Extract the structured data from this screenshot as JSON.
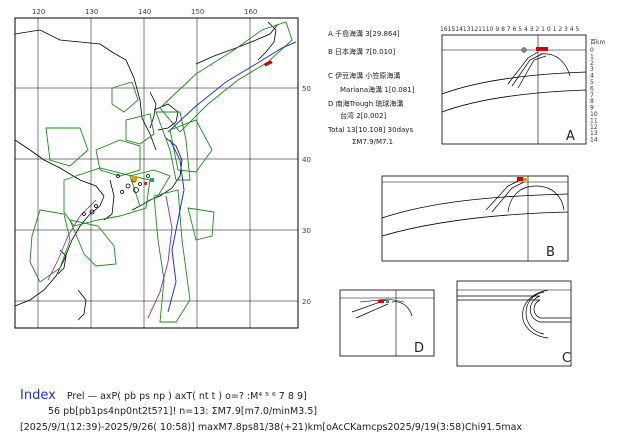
{
  "map": {
    "lon_ticks": [
      "120",
      "130",
      "140",
      "150",
      "160"
    ],
    "lat_ticks": [
      "50",
      "40",
      "30",
      "20"
    ]
  },
  "legend": {
    "a": "A 千島海溝 3[29.864]",
    "b": "B 日本海溝 7[0.010]",
    "c": "C 伊豆海溝 小笠原海溝",
    "c2": "Mariana海溝 1[0.081]",
    "d": "D 南海Trough 琉球海溝",
    "d2": "台湾 2[0.002]",
    "total": "Total 13[10.108] 30days",
    "sum": "ΣM7.9/M7.1"
  },
  "panels": {
    "a_label": "A",
    "b_label": "B",
    "c_label": "C",
    "d_label": "D",
    "a_top_ticks": "16151413121110 9 8 7 6 5 4 3 2 1 0 1 2 3 4 5",
    "a_unit": "百km",
    "depth_ticks": [
      "0",
      "1",
      "2",
      "3",
      "4",
      "5",
      "6",
      "7",
      "8",
      "9",
      "10",
      "11",
      "12",
      "13",
      "14"
    ]
  },
  "footer": {
    "index": "Index",
    "line1_rest": "Prel — axP(   pb    ps    np ) axT( nt  t )  o=?  :M⁴ ⁵ ⁶ 7 8 9]",
    "line2": "56 pb[pb1ps4np0nt2t5?1]! n=13: ΣM7.9[m7.0/minM3.5]",
    "line3": "[2025/9/1(12:39)-2025/9/26( 10:58)] maxM7.8ps81/38(+21)km[oAcCKamcps2025/9/19(3:58)Chi91.5max"
  },
  "colors": {
    "index": "#2233cc",
    "pb": "#d4a017",
    "ps": "#cc2222",
    "np": "#2aa84a",
    "nt": "#22aacc",
    "coast": "#000000",
    "zones": "#1a8a1a",
    "trench_a": "#cc0000",
    "trench_b": "#2233cc",
    "trench_c": "#9a3aa8"
  }
}
